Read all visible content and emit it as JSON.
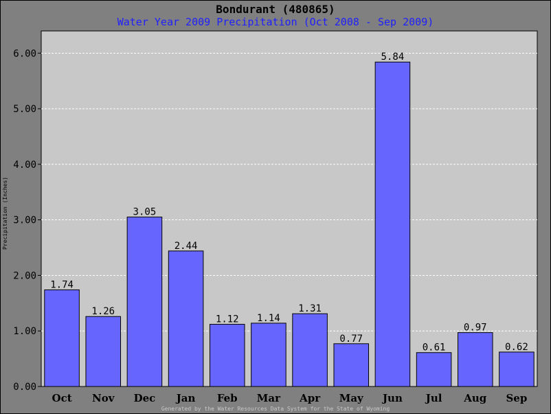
{
  "chart_data": {
    "type": "bar",
    "title": "Bondurant (480865)",
    "subtitle": "Water Year 2009 Precipitation (Oct 2008 - Sep 2009)",
    "ylabel": "Precipitation (Inches)",
    "xlabel": "",
    "categories": [
      "Oct",
      "Nov",
      "Dec",
      "Jan",
      "Feb",
      "Mar",
      "Apr",
      "May",
      "Jun",
      "Jul",
      "Aug",
      "Sep"
    ],
    "values": [
      1.74,
      1.26,
      3.05,
      2.44,
      1.12,
      1.14,
      1.31,
      0.77,
      5.84,
      0.61,
      0.97,
      0.62
    ],
    "data_labels": [
      "1.74",
      "1.26",
      "3.05",
      "2.44",
      "1.12",
      "1.14",
      "1.31",
      "0.77",
      "5.84",
      "0.61",
      "0.97",
      "0.62"
    ],
    "ylim": [
      0,
      6.4
    ],
    "yticks": [
      "0.00",
      "1.00",
      "2.00",
      "3.00",
      "4.00",
      "5.00",
      "6.00"
    ],
    "grid": true,
    "colors": {
      "bar": "#6666ff",
      "plot_bg": "#c8c8c8",
      "page_bg": "#808080",
      "grid": "#ffffff",
      "subtitle": "#1f1fff"
    }
  },
  "footer": "Generated by the Water Resources Data System for the State of Wyoming"
}
